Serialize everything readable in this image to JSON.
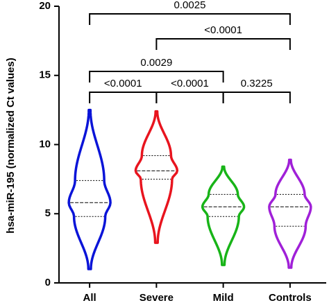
{
  "chart_data": {
    "type": "violin",
    "y_label": "hsa-miR-195 (normalized Ct values)",
    "categories": [
      "All",
      "Severe",
      "Mild",
      "Controls"
    ],
    "violins": [
      {
        "color": "#0a14d8",
        "min": 1.0,
        "q1": 4.8,
        "median": 5.8,
        "q3": 7.4,
        "max": 12.5
      },
      {
        "color": "#e8141e",
        "min": 2.9,
        "q1": 7.5,
        "median": 8.1,
        "q3": 9.2,
        "max": 12.4
      },
      {
        "color": "#18b418",
        "min": 1.3,
        "q1": 4.8,
        "median": 5.5,
        "q3": 6.4,
        "max": 8.4
      },
      {
        "color": "#a020d8",
        "min": 1.1,
        "q1": 4.1,
        "median": 5.5,
        "q3": 6.4,
        "max": 8.9
      }
    ],
    "ylim": [
      0,
      20
    ],
    "yticks": [
      0,
      5,
      10,
      15,
      20
    ],
    "comparisons": [
      {
        "groups": [
          "All",
          "Severe"
        ],
        "label": "<0.0001"
      },
      {
        "groups": [
          "Severe",
          "Mild"
        ],
        "label": "<0.0001"
      },
      {
        "groups": [
          "Mild",
          "Controls"
        ],
        "label": "0.3225"
      },
      {
        "groups": [
          "All",
          "Mild"
        ],
        "label": "0.0029"
      },
      {
        "groups": [
          "Severe",
          "Controls"
        ],
        "label": "<0.0001"
      },
      {
        "groups": [
          "All",
          "Controls"
        ],
        "label": "0.0025"
      }
    ]
  }
}
